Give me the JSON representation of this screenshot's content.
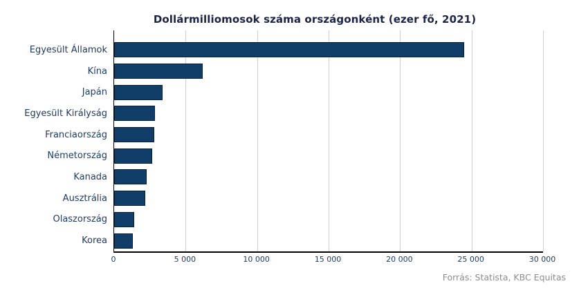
{
  "source": "Forrás: Statista, KBC Equitas",
  "colors": {
    "bar_fill": "#103e68",
    "bar_border": "#041f3d",
    "title_text": "#1b2348",
    "label_text": "#1f3b63",
    "gridline": "#cfcfcf",
    "axis_line": "#000000",
    "source_text": "#8c8c8c",
    "background": "#ffffff"
  },
  "chart_data": {
    "type": "bar",
    "orientation": "horizontal",
    "title": "Dollármilliomosok száma országonként (ezer fő, 2021)",
    "categories": [
      "Egyesült Államok",
      "Kína",
      "Japán",
      "Egyesült Királyság",
      "Franciaország",
      "Németország",
      "Kanada",
      "Ausztrália",
      "Olaszország",
      "Korea"
    ],
    "values": [
      24480,
      6190,
      3365,
      2849,
      2796,
      2683,
      2291,
      2177,
      1413,
      1290
    ],
    "xlabel": "",
    "ylabel": "",
    "xlim": [
      0,
      30000
    ],
    "x_ticks": [
      0,
      5000,
      10000,
      15000,
      20000,
      25000,
      30000
    ],
    "x_tick_labels": [
      "0",
      "5 000",
      "10 000",
      "15 000",
      "20 000",
      "25 000",
      "30 000"
    ],
    "grid": "vertical-only",
    "legend": "none",
    "unit": "ezer fő"
  }
}
